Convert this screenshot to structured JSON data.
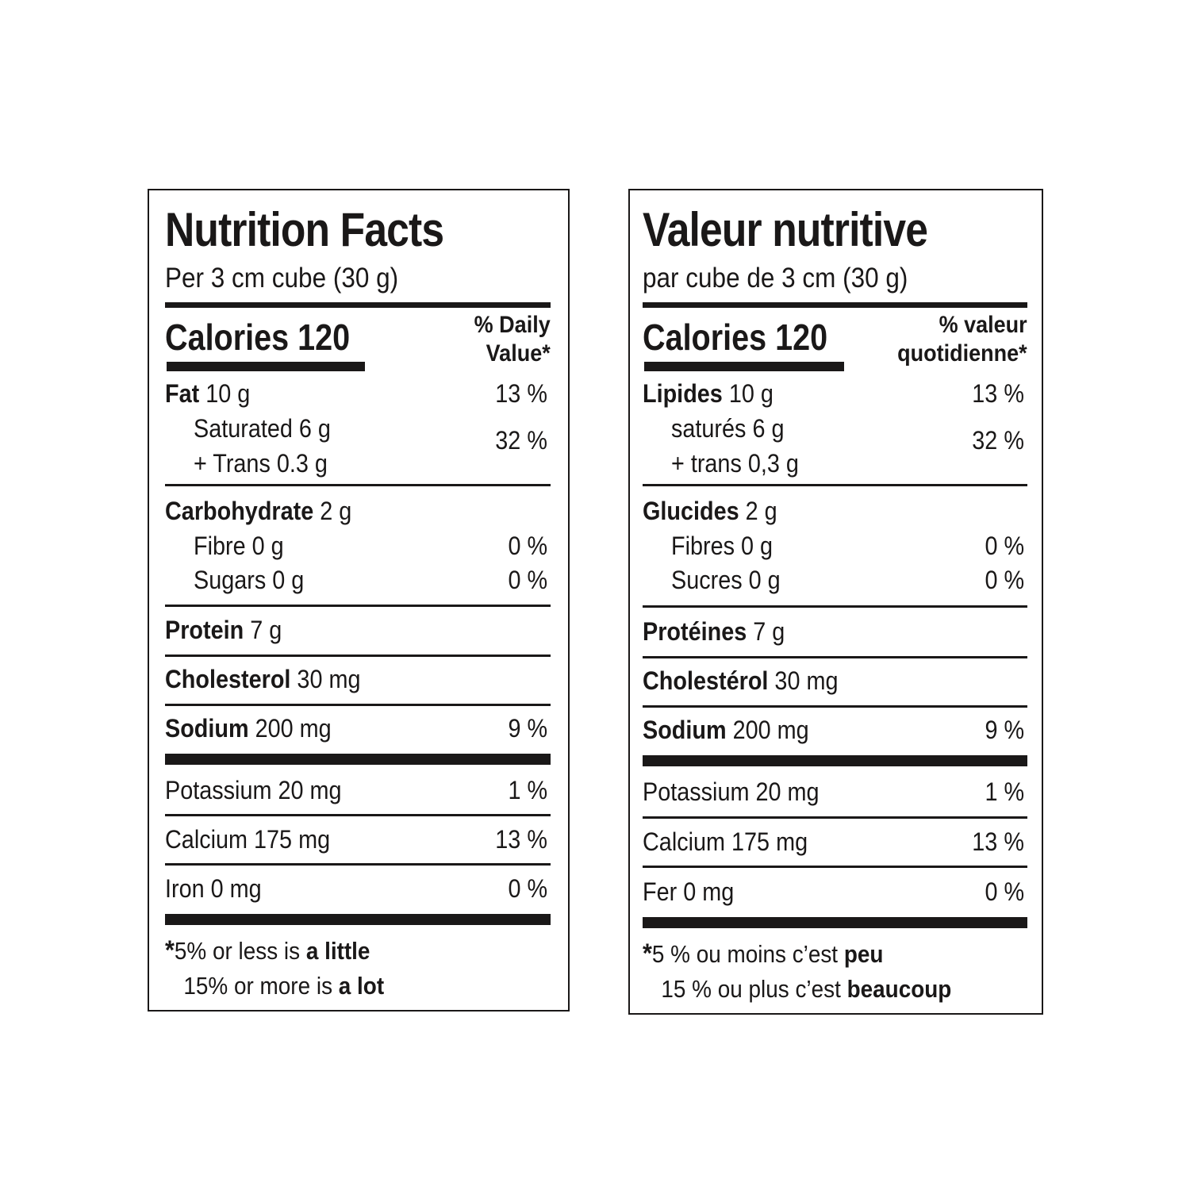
{
  "english": {
    "title": "Nutrition Facts",
    "serving": "Per 3 cm cube (30 g)",
    "calories": "Calories 120",
    "dv_line1": "% Daily",
    "dv_line2": "Value*",
    "fat_name": "Fat",
    "fat_amt": " 10 g",
    "fat_pct": "13 %",
    "sat": "Saturated 6 g",
    "trans": "+ Trans 0.3 g",
    "sat_trans_pct": "32 %",
    "carb_name": "Carbohydrate",
    "carb_amt": " 2 g",
    "fibre": "Fibre 0 g",
    "fibre_pct": "0 %",
    "sugars": "Sugars 0 g",
    "sugars_pct": "0 %",
    "protein_name": "Protein",
    "protein_amt": " 7 g",
    "chol_name": "Cholesterol",
    "chol_amt": " 30 mg",
    "sodium_name": "Sodium",
    "sodium_amt": " 200 mg",
    "sodium_pct": "9 %",
    "potassium": "Potassium 20 mg",
    "potassium_pct": "1 %",
    "calcium": "Calcium 175 mg",
    "calcium_pct": "13 %",
    "iron": "Iron 0 mg",
    "iron_pct": "0 %",
    "foot_star": "*",
    "foot1_a": "5% or less is ",
    "foot1_b": "a little",
    "foot2_a": "15% or more is ",
    "foot2_b": "a lot"
  },
  "french": {
    "title": "Valeur nutritive",
    "serving": "par cube de 3 cm (30 g)",
    "calories": "Calories 120",
    "dv_line1": "% valeur",
    "dv_line2": "quotidienne*",
    "fat_name": "Lipides",
    "fat_amt": " 10 g",
    "fat_pct": "13 %",
    "sat": "saturés 6 g",
    "trans": "+ trans 0,3 g",
    "sat_trans_pct": "32 %",
    "carb_name": "Glucides",
    "carb_amt": " 2 g",
    "fibre": "Fibres 0 g",
    "fibre_pct": "0 %",
    "sugars": "Sucres 0 g",
    "sugars_pct": "0 %",
    "protein_name": "Protéines",
    "protein_amt": " 7 g",
    "chol_name": "Cholestérol",
    "chol_amt": " 30 mg",
    "sodium_name": "Sodium",
    "sodium_amt": " 200 mg",
    "sodium_pct": "9 %",
    "potassium": "Potassium 20 mg",
    "potassium_pct": "1 %",
    "calcium": "Calcium 175 mg",
    "calcium_pct": "13 %",
    "iron": "Fer 0 mg",
    "iron_pct": "0 %",
    "foot_star": "*",
    "foot1_a": "5 % ou moins c’est ",
    "foot1_b": "peu",
    "foot2_a": "15 % ou plus c’est ",
    "foot2_b": "beaucoup"
  }
}
